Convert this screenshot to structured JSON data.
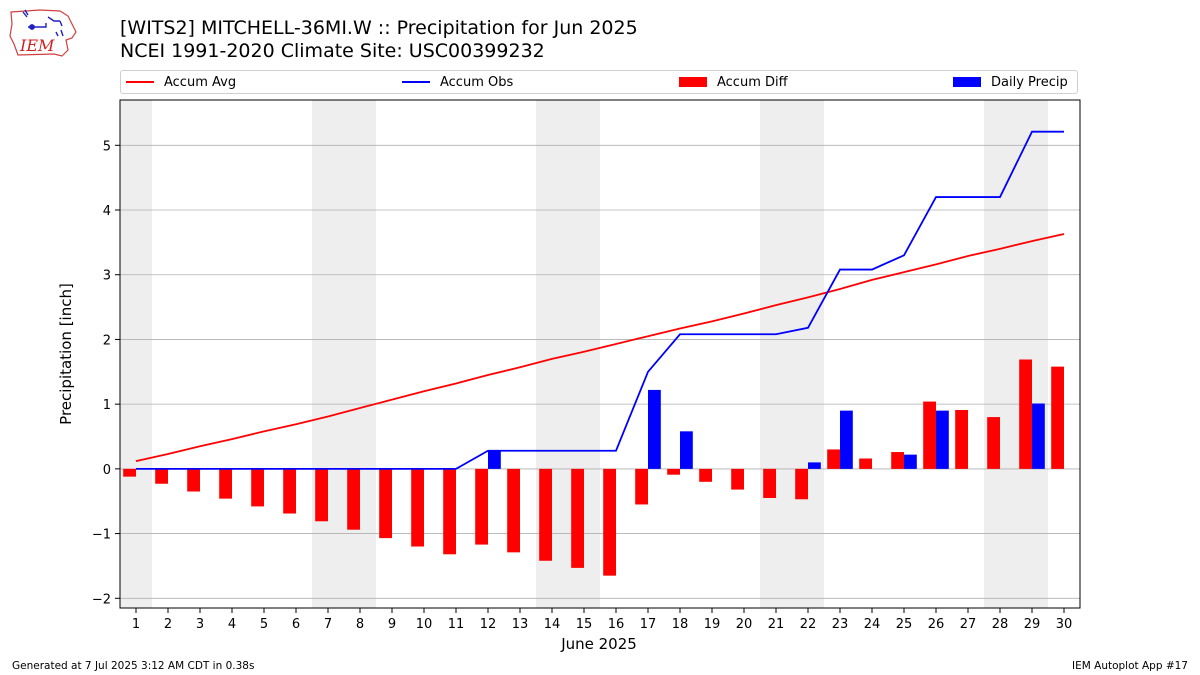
{
  "header": {
    "title": "[WITS2] MITCHELL-36MI.W :: Precipitation for Jun 2025",
    "subtitle": "NCEI 1991-2020 Climate Site: USC00399232",
    "logo_text": "IEM"
  },
  "footer": {
    "left": "Generated at 7 Jul 2025 3:12 AM CDT in 0.38s",
    "right": "IEM Autoplot App #17"
  },
  "colors": {
    "avg": "#ff0000",
    "obs": "#0000ff",
    "diff": "#ff0000",
    "daily": "#0000ff",
    "weekend": "#eeeeee",
    "grid": "#b0b0b0"
  },
  "chart_data": {
    "type": "bar",
    "xlabel": "June 2025",
    "ylabel": "Precipitation [inch]",
    "ylim": [
      -2.15,
      5.7
    ],
    "yticks": [
      -2,
      -1,
      0,
      1,
      2,
      3,
      4,
      5
    ],
    "grid": true,
    "legend_position": "top",
    "categories": [
      "1",
      "2",
      "3",
      "4",
      "5",
      "6",
      "7",
      "8",
      "9",
      "10",
      "11",
      "12",
      "13",
      "14",
      "15",
      "16",
      "17",
      "18",
      "19",
      "20",
      "21",
      "22",
      "23",
      "24",
      "25",
      "26",
      "27",
      "28",
      "29",
      "30"
    ],
    "weekend_days": [
      1,
      7,
      8,
      14,
      15,
      21,
      22,
      28,
      29
    ],
    "series": [
      {
        "name": "Accum Avg",
        "kind": "line",
        "values": [
          0.12,
          0.23,
          0.35,
          0.46,
          0.58,
          0.69,
          0.81,
          0.94,
          1.07,
          1.2,
          1.32,
          1.45,
          1.57,
          1.7,
          1.81,
          1.93,
          2.05,
          2.17,
          2.28,
          2.4,
          2.53,
          2.65,
          2.78,
          2.92,
          3.04,
          3.16,
          3.29,
          3.4,
          3.52,
          3.63
        ]
      },
      {
        "name": "Accum Obs",
        "kind": "line",
        "values": [
          0,
          0,
          0,
          0,
          0,
          0,
          0,
          0,
          0,
          0,
          0,
          0.28,
          0.28,
          0.28,
          0.28,
          0.28,
          1.5,
          2.08,
          2.08,
          2.08,
          2.08,
          2.18,
          3.08,
          3.08,
          3.3,
          4.2,
          4.2,
          4.2,
          5.21,
          5.21
        ]
      },
      {
        "name": "Accum Diff",
        "kind": "bar",
        "values": [
          -0.12,
          -0.23,
          -0.35,
          -0.46,
          -0.58,
          -0.69,
          -0.81,
          -0.94,
          -1.07,
          -1.2,
          -1.32,
          -1.17,
          -1.29,
          -1.42,
          -1.53,
          -1.65,
          -0.55,
          -0.09,
          -0.2,
          -0.32,
          -0.45,
          -0.47,
          0.3,
          0.16,
          0.26,
          1.04,
          0.91,
          0.8,
          1.69,
          1.58
        ]
      },
      {
        "name": "Daily Precip",
        "kind": "bar",
        "values": [
          0,
          0,
          0,
          0,
          0,
          0,
          0,
          0,
          0,
          0,
          0,
          0.28,
          0,
          0,
          0,
          0,
          1.22,
          0.58,
          0,
          0,
          0,
          0.1,
          0.9,
          0,
          0.22,
          0.9,
          0,
          0,
          1.01,
          0
        ]
      }
    ]
  }
}
